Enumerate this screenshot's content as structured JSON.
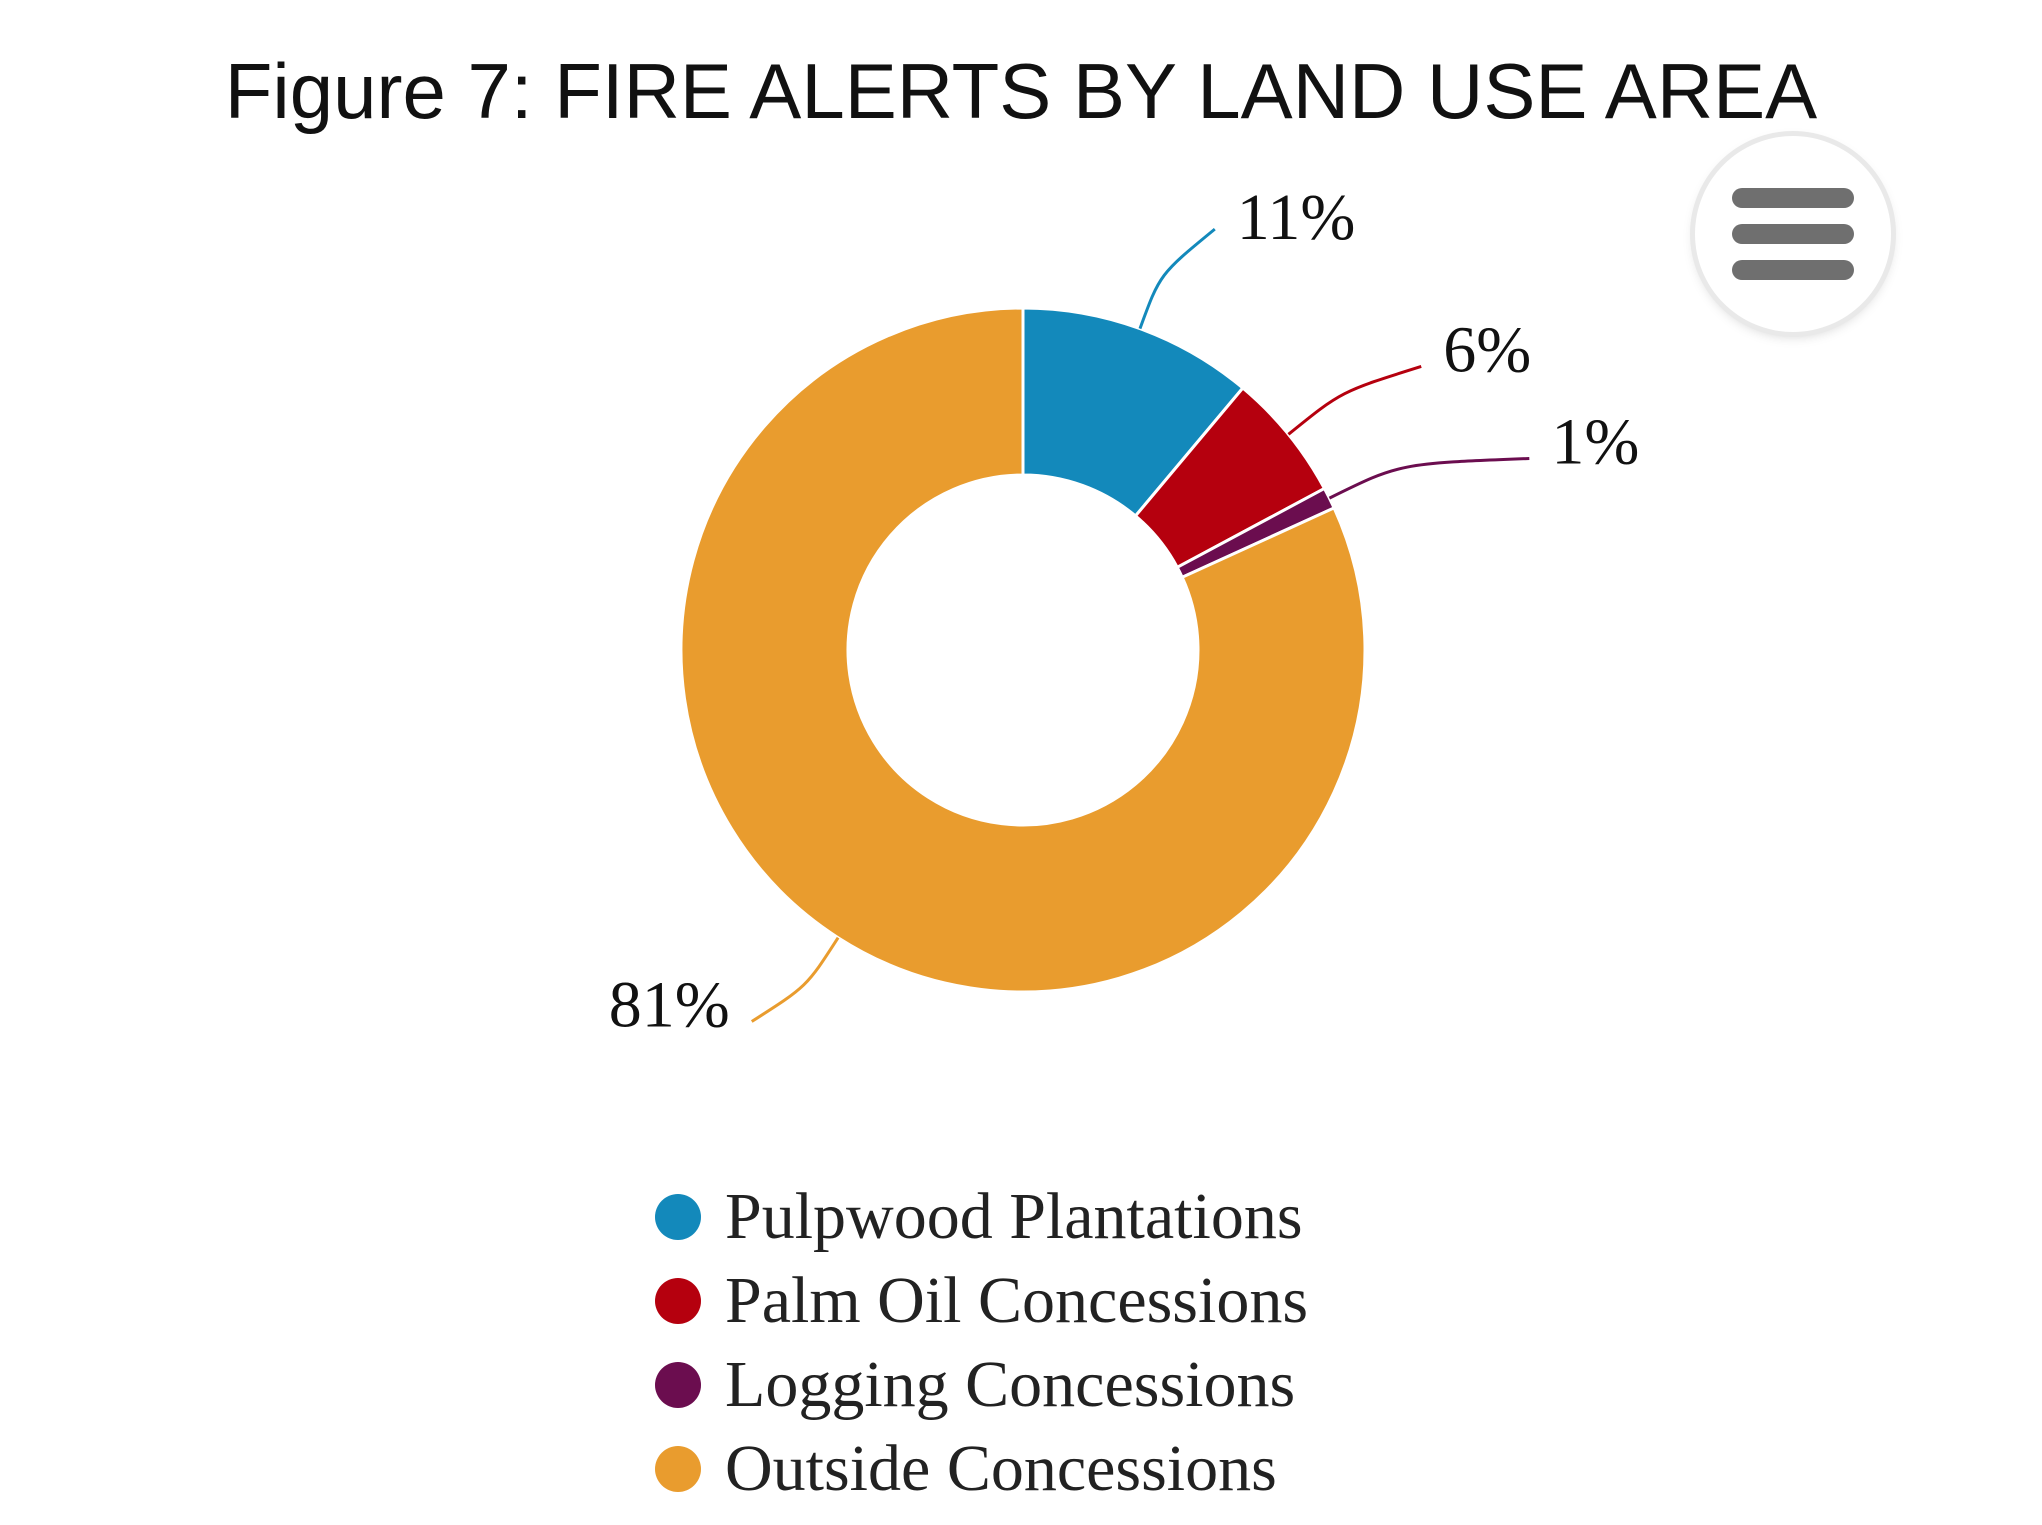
{
  "chart_data": {
    "type": "pie",
    "donut": true,
    "title": "Figure 7: FIRE ALERTS BY LAND USE AREA",
    "categories": [
      "Pulpwood Plantations",
      "Palm Oil Concessions",
      "Logging Concessions",
      "Outside Concessions"
    ],
    "values": [
      11,
      6,
      1,
      81
    ],
    "data_labels": [
      "11%",
      "6%",
      "1%",
      "81%"
    ],
    "colors": [
      "#1389bb",
      "#b5000e",
      "#6b0d4f",
      "#e99c2e"
    ],
    "legend_position": "bottom"
  },
  "menu": {
    "icon": "hamburger-menu-icon"
  }
}
